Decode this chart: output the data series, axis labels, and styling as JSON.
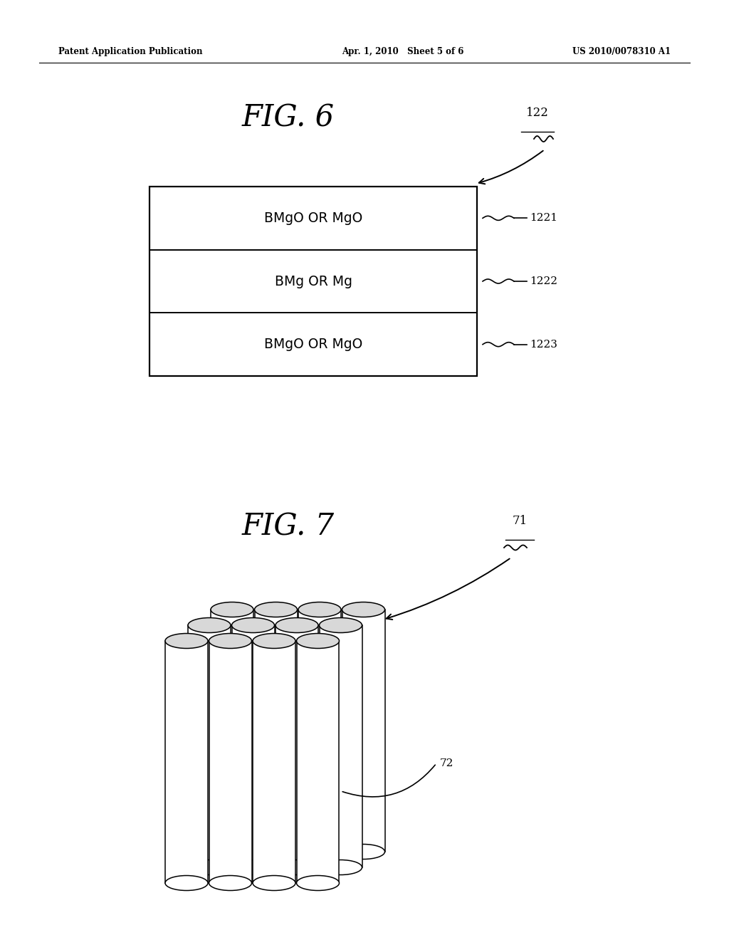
{
  "background_color": "#ffffff",
  "header_left": "Patent Application Publication",
  "header_center": "Apr. 1, 2010   Sheet 5 of 6",
  "header_right": "US 2010/0078310 A1",
  "fig6_title": "FIG. 6",
  "fig6_label": "122",
  "fig6_layers": [
    {
      "text": "BMgO OR MgO",
      "label": "1221"
    },
    {
      "text": "BMg OR Mg",
      "label": "1222"
    },
    {
      "text": "BMgO OR MgO",
      "label": "1223"
    }
  ],
  "fig7_title": "FIG. 7",
  "fig7_label": "71",
  "fig7_sublabel": "72",
  "page_width": 10.24,
  "page_height": 13.2
}
